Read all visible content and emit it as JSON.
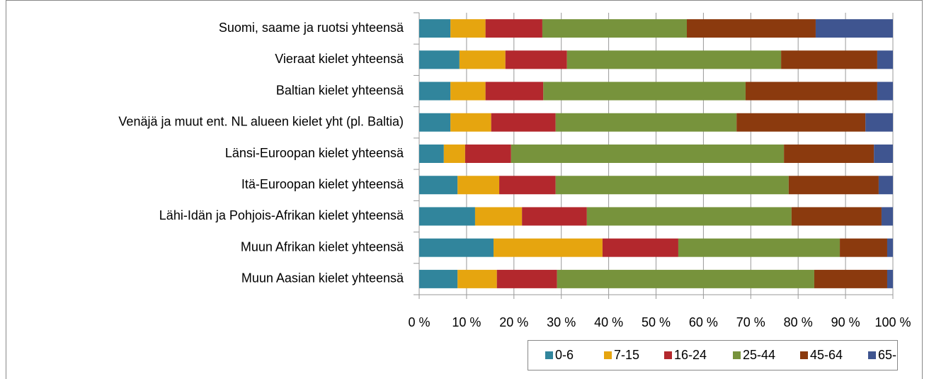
{
  "chart_data": {
    "type": "stacked_barh",
    "categories": [
      "Suomi, saame ja ruotsi yhteensä",
      "Vieraat kielet yhteensä",
      "Baltian kielet yhteensä",
      "Venäjä ja muut ent. NL alueen kielet yht (pl. Baltia)",
      "Länsi-Euroopan kielet yhteensä",
      "Itä-Euroopan kielet yhteensä",
      "Lähi-Idän ja Pohjois-Afrikan kielet yhteensä",
      "Muun Afrikan kielet yhteensä",
      "Muun Aasian kielet yhteensä"
    ],
    "series": [
      {
        "name": "0-6",
        "color": "#31859c",
        "values": [
          6.6,
          8.5,
          6.6,
          6.6,
          5.2,
          8.1,
          11.8,
          15.7,
          8.1
        ]
      },
      {
        "name": "7-15",
        "color": "#e6a50f",
        "values": [
          7.4,
          9.7,
          7.4,
          8.6,
          4.5,
          8.8,
          9.9,
          23.0,
          8.3
        ]
      },
      {
        "name": "16-24",
        "color": "#b3282d",
        "values": [
          12.0,
          13.0,
          12.2,
          13.6,
          9.7,
          11.9,
          13.7,
          16.0,
          12.7
        ]
      },
      {
        "name": "25-44",
        "color": "#77933c",
        "values": [
          30.5,
          45.2,
          42.7,
          38.2,
          57.6,
          49.2,
          43.2,
          34.1,
          54.3
        ]
      },
      {
        "name": "45-64",
        "color": "#8b3a0e",
        "values": [
          27.2,
          20.3,
          27.8,
          27.2,
          19.0,
          19.0,
          19.0,
          10.0,
          15.4
        ]
      },
      {
        "name": "65-",
        "color": "#3f5590",
        "values": [
          16.3,
          3.3,
          3.3,
          5.8,
          4.0,
          3.0,
          2.4,
          1.2,
          1.2
        ]
      }
    ],
    "xlim": [
      0,
      100
    ],
    "xticks": [
      {
        "value": 0,
        "label": "0 %"
      },
      {
        "value": 10,
        "label": "10 %"
      },
      {
        "value": 20,
        "label": "20 %"
      },
      {
        "value": 30,
        "label": "30 %"
      },
      {
        "value": 40,
        "label": "40 %"
      },
      {
        "value": 50,
        "label": "50 %"
      },
      {
        "value": 60,
        "label": "60 %"
      },
      {
        "value": 70,
        "label": "70 %"
      },
      {
        "value": 80,
        "label": "80 %"
      },
      {
        "value": 90,
        "label": "90 %"
      },
      {
        "value": 100,
        "label": "100 %"
      }
    ],
    "grid": true,
    "legend": "bottom"
  }
}
